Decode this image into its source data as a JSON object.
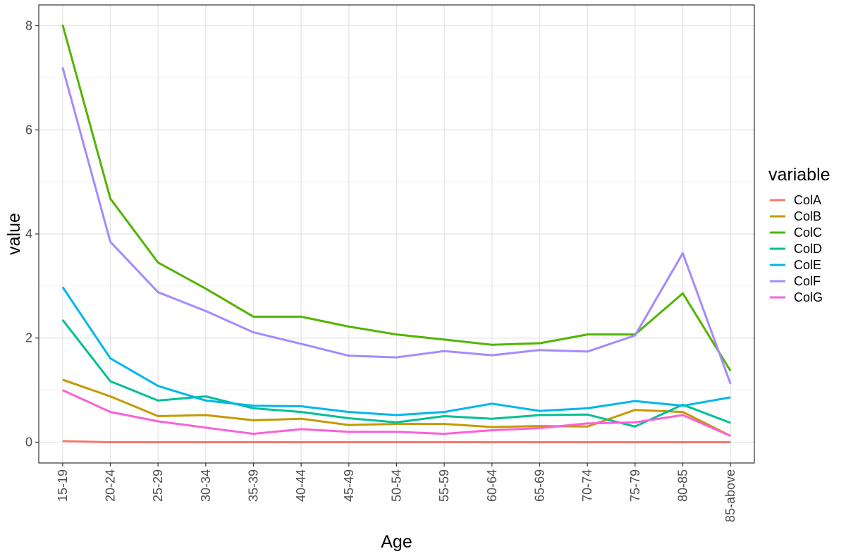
{
  "chart_data": {
    "type": "line",
    "xlabel": "Age",
    "ylabel": "value",
    "legend_title": "variable",
    "legend_position": "right",
    "grid": true,
    "ylim": [
      -0.4,
      8.4
    ],
    "y_ticks": [
      0,
      2,
      4,
      6,
      8
    ],
    "y_tick_labels": [
      "0",
      "2",
      "4",
      "6",
      "8"
    ],
    "categories": [
      "15-19",
      "20-24",
      "25-29",
      "30-34",
      "35-39",
      "40-44",
      "45-49",
      "50-54",
      "55-59",
      "60-64",
      "65-69",
      "70-74",
      "75-79",
      "80-85",
      "85-above"
    ],
    "series": [
      {
        "name": "ColA",
        "color": "#F8766D",
        "values": [
          0.02,
          0.0,
          0.0,
          0.0,
          0.0,
          0.0,
          0.0,
          0.0,
          0.0,
          0.0,
          0.0,
          0.0,
          0.0,
          0.0,
          0.0
        ]
      },
      {
        "name": "ColB",
        "color": "#C49A00",
        "values": [
          1.2,
          0.88,
          0.5,
          0.52,
          0.42,
          0.45,
          0.33,
          0.35,
          0.35,
          0.29,
          0.31,
          0.3,
          0.62,
          0.58,
          0.12
        ]
      },
      {
        "name": "ColC",
        "color": "#53B400",
        "values": [
          8.02,
          4.68,
          3.45,
          2.95,
          2.41,
          2.41,
          2.22,
          2.07,
          1.97,
          1.87,
          1.9,
          2.07,
          2.07,
          2.86,
          1.37
        ]
      },
      {
        "name": "ColD",
        "color": "#00C094",
        "values": [
          2.35,
          1.17,
          0.8,
          0.88,
          0.65,
          0.58,
          0.46,
          0.38,
          0.5,
          0.45,
          0.52,
          0.53,
          0.3,
          0.72,
          0.37
        ]
      },
      {
        "name": "ColE",
        "color": "#00B6EB",
        "values": [
          2.98,
          1.61,
          1.08,
          0.8,
          0.7,
          0.69,
          0.58,
          0.52,
          0.58,
          0.74,
          0.6,
          0.65,
          0.79,
          0.7,
          0.86
        ]
      },
      {
        "name": "ColF",
        "color": "#A58AFF",
        "values": [
          7.2,
          3.85,
          2.88,
          2.52,
          2.11,
          1.89,
          1.66,
          1.63,
          1.75,
          1.67,
          1.77,
          1.74,
          2.05,
          3.63,
          1.12
        ]
      },
      {
        "name": "ColG",
        "color": "#FB61D7",
        "values": [
          1.0,
          0.58,
          0.4,
          0.28,
          0.16,
          0.25,
          0.2,
          0.2,
          0.16,
          0.23,
          0.27,
          0.36,
          0.38,
          0.52,
          0.12
        ]
      }
    ]
  }
}
